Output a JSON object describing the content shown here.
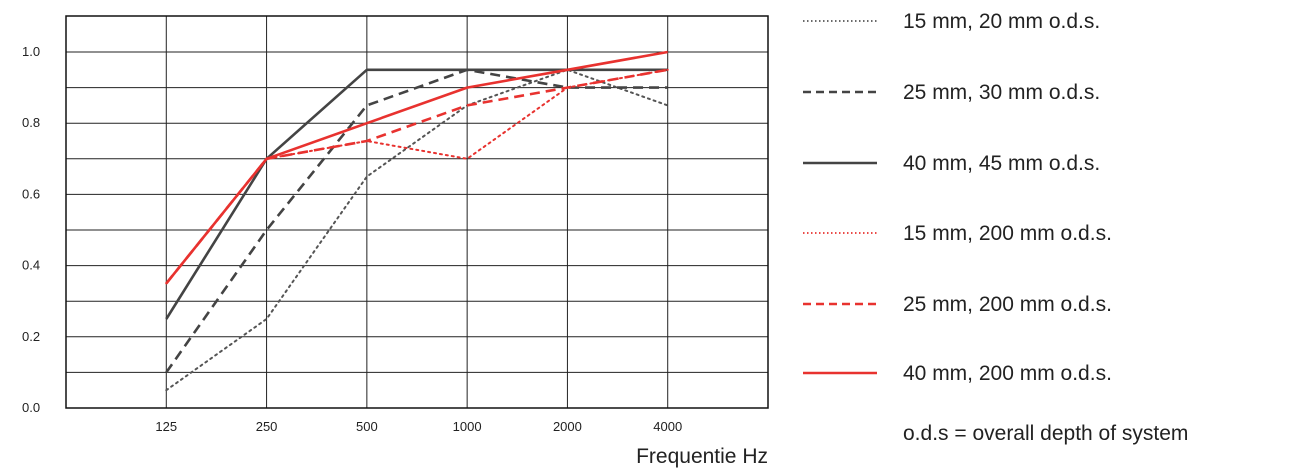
{
  "chart_data": {
    "type": "line",
    "x": [
      "125",
      "250",
      "500",
      "1000",
      "2000",
      "4000"
    ],
    "xlabel": "Frequentie Hz",
    "ylabel": "",
    "ylim": [
      0,
      1.0
    ],
    "yticks": [
      "0.0",
      "0.2",
      "0.4",
      "0.6",
      "0.8",
      "1.0"
    ],
    "grid": true,
    "legend_position": "right",
    "note": "o.d.s = overall depth of system",
    "series": [
      {
        "name": "15 mm, 20 mm o.d.s.",
        "values": [
          0.05,
          0.25,
          0.65,
          0.85,
          0.95,
          0.85
        ],
        "color": "#555555",
        "style": "dotted"
      },
      {
        "name": "25 mm, 30 mm o.d.s.",
        "values": [
          0.1,
          0.5,
          0.85,
          0.95,
          0.9,
          0.9
        ],
        "color": "#444444",
        "style": "dashed"
      },
      {
        "name": "40 mm, 45 mm o.d.s.",
        "values": [
          0.25,
          0.7,
          0.95,
          0.95,
          0.95,
          0.95
        ],
        "color": "#444444",
        "style": "solid"
      },
      {
        "name": "15 mm, 200 mm o.d.s.",
        "values": [
          0.35,
          0.7,
          0.75,
          0.7,
          0.9,
          0.95
        ],
        "color": "#e8322f",
        "style": "dotted"
      },
      {
        "name": "25 mm, 200 mm o.d.s.",
        "values": [
          0.35,
          0.7,
          0.75,
          0.85,
          0.9,
          0.95
        ],
        "color": "#e8322f",
        "style": "dashed"
      },
      {
        "name": "40 mm, 200 mm o.d.s.",
        "values": [
          0.35,
          0.7,
          0.8,
          0.9,
          0.95,
          1.0
        ],
        "color": "#e8322f",
        "style": "solid"
      }
    ]
  }
}
